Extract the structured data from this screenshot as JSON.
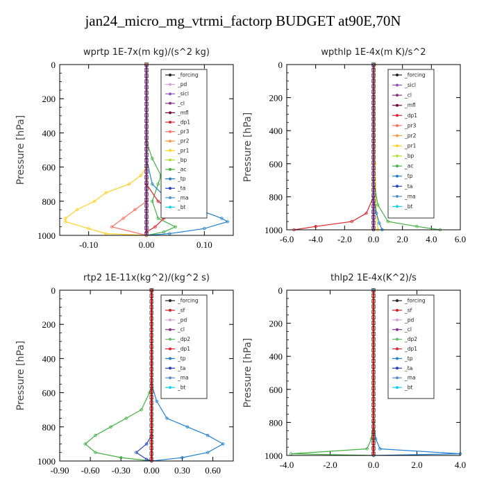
{
  "title": "jan24_micro_mg_vtrmi_factorp  BUDGET at90E,70N",
  "colors": {
    "forcing": "#222222",
    "pd": "#d9a0dc",
    "sicl": "#9a4fc0",
    "cl": "#8a2f8a",
    "mfl": "#7a0040",
    "dp1": "#e0202a",
    "pr3": "#ff7060",
    "pr2": "#ff9a40",
    "pr1": "#ffd020",
    "bp": "#b0e030",
    "ac": "#40b040",
    "tp": "#2080d0",
    "ta": "#2040c0",
    "ma": "#5090d0",
    "bt": "#10d0f0",
    "sf": "#d02020",
    "dp2": "#60c060"
  },
  "chart_data": [
    {
      "type": "line",
      "title": "wprtp   1E-7x(m kg)/(s^2 kg)",
      "ylabel": "Pressure [hPa]",
      "xlim": [
        -0.15,
        0.15
      ],
      "ylim": [
        1000,
        0
      ],
      "xticks": [
        "-0.10",
        "0.00",
        "0.10"
      ],
      "xtick_values": [
        -0.1,
        0.0,
        0.1
      ],
      "yticks": [
        "0",
        "200",
        "400",
        "600",
        "800",
        "1000"
      ],
      "legend": [
        "_forcing",
        "_pd",
        "_sicl",
        "_cl",
        "_mfl",
        "_dp1",
        "_pr3",
        "_pr2",
        "_pr1",
        "_bp",
        "_ac",
        "_tp",
        "_ta",
        "_ma",
        "_bt"
      ],
      "series": [
        {
          "name": "_forcing",
          "color_key": "forcing",
          "points": [
            [
              0,
              0
            ],
            [
              0,
              1000
            ]
          ]
        },
        {
          "name": "_pr1",
          "color_key": "pr1",
          "points": [
            [
              0,
              0
            ],
            [
              0,
              600
            ],
            [
              -0.01,
              650
            ],
            [
              -0.03,
              700
            ],
            [
              -0.07,
              750
            ],
            [
              -0.09,
              800
            ],
            [
              -0.12,
              850
            ],
            [
              -0.14,
              900
            ],
            [
              -0.14,
              920
            ],
            [
              -0.1,
              960
            ],
            [
              -0.07,
              990
            ],
            [
              0,
              1000
            ]
          ]
        },
        {
          "name": "_ac",
          "color_key": "ac",
          "points": [
            [
              0,
              0
            ],
            [
              0,
              450
            ],
            [
              0.01,
              550
            ],
            [
              0.025,
              650
            ],
            [
              0.02,
              700
            ],
            [
              0.01,
              800
            ],
            [
              0.02,
              900
            ],
            [
              0.05,
              950
            ],
            [
              0.03,
              980
            ],
            [
              0,
              1000
            ]
          ]
        },
        {
          "name": "_tp",
          "color_key": "tp",
          "points": [
            [
              0,
              0
            ],
            [
              0,
              550
            ],
            [
              0.01,
              700
            ],
            [
              0.04,
              800
            ],
            [
              0.09,
              850
            ],
            [
              0.13,
              900
            ],
            [
              0.14,
              920
            ],
            [
              0.1,
              960
            ],
            [
              0.04,
              990
            ],
            [
              0,
              1000
            ]
          ]
        },
        {
          "name": "_dp1",
          "color_key": "dp1",
          "points": [
            [
              0,
              0
            ],
            [
              0,
              700
            ],
            [
              0.02,
              800
            ],
            [
              0.04,
              850
            ],
            [
              0.03,
              900
            ],
            [
              0.015,
              950
            ],
            [
              0,
              980
            ],
            [
              0,
              1000
            ]
          ]
        },
        {
          "name": "_pr3",
          "color_key": "pr3",
          "points": [
            [
              0,
              0
            ],
            [
              0,
              800
            ],
            [
              -0.02,
              850
            ],
            [
              -0.04,
              900
            ],
            [
              -0.06,
              950
            ],
            [
              0,
              1000
            ]
          ]
        }
      ]
    },
    {
      "type": "line",
      "title": "wpthlp   1E-4x(m K)/s^2",
      "ylabel": "Pressure [hPa]",
      "xlim": [
        -6.0,
        6.0
      ],
      "ylim": [
        1000,
        0
      ],
      "xticks": [
        "-6.0",
        "-4.0",
        "-2.0",
        "0.0",
        "2.0",
        "4.0",
        "6.0"
      ],
      "xtick_values": [
        -6,
        -4,
        -2,
        0,
        2,
        4,
        6
      ],
      "yticks": [
        "0",
        "200",
        "400",
        "600",
        "800",
        "1000"
      ],
      "legend": [
        "_forcing",
        "_sicl",
        "_cl",
        "_mfl",
        "_dp1",
        "_pr3",
        "_pr2",
        "_pr1",
        "_bp",
        "_ac",
        "_tp",
        "_ta",
        "_ma",
        "_bt"
      ],
      "series": [
        {
          "name": "_forcing",
          "color_key": "forcing",
          "points": [
            [
              0,
              0
            ],
            [
              0,
              1000
            ]
          ]
        },
        {
          "name": "_pr1",
          "color_key": "pr1",
          "points": [
            [
              0.1,
              0
            ],
            [
              0.1,
              600
            ],
            [
              0.2,
              900
            ],
            [
              0.3,
              1000
            ]
          ]
        },
        {
          "name": "_ac",
          "color_key": "ac",
          "points": [
            [
              0,
              0
            ],
            [
              0,
              700
            ],
            [
              0.3,
              850
            ],
            [
              1.0,
              950
            ],
            [
              3.0,
              980
            ],
            [
              4.6,
              1000
            ]
          ]
        },
        {
          "name": "_dp1",
          "color_key": "dp1",
          "points": [
            [
              0,
              0
            ],
            [
              0,
              800
            ],
            [
              -0.5,
              900
            ],
            [
              -1.5,
              950
            ],
            [
              -4.0,
              980
            ],
            [
              -5.5,
              1000
            ]
          ]
        },
        {
          "name": "_tp",
          "color_key": "tp",
          "points": [
            [
              0,
              0
            ],
            [
              0,
              800
            ],
            [
              0.2,
              900
            ],
            [
              0.4,
              960
            ],
            [
              0.6,
              1000
            ]
          ]
        }
      ]
    },
    {
      "type": "line",
      "title": "rtp2   1E-11x(kg^2)/(kg^2 s)",
      "ylabel": "Pressure [hPa]",
      "xlim": [
        -0.9,
        0.8
      ],
      "ylim": [
        1000,
        0
      ],
      "xticks": [
        "-0.90",
        "-0.60",
        "-0.30",
        "0.00",
        "0.30",
        "0.60"
      ],
      "xtick_values": [
        -0.9,
        -0.6,
        -0.3,
        0.0,
        0.3,
        0.6
      ],
      "yticks": [
        "0",
        "200",
        "400",
        "600",
        "800",
        "1000"
      ],
      "legend": [
        "_forcing",
        "_sf",
        "_pd",
        "_cl",
        "_dp2",
        "_dp1",
        "_tp",
        "_ta",
        "_ma",
        "_bt"
      ],
      "series": [
        {
          "name": "_forcing",
          "color_key": "forcing",
          "points": [
            [
              0,
              0
            ],
            [
              0,
              1000
            ]
          ]
        },
        {
          "name": "_dp1",
          "color_key": "ac",
          "points": [
            [
              0,
              0
            ],
            [
              0,
              550
            ],
            [
              -0.02,
              600
            ],
            [
              -0.1,
              700
            ],
            [
              -0.25,
              750
            ],
            [
              -0.4,
              800
            ],
            [
              -0.55,
              850
            ],
            [
              -0.65,
              900
            ],
            [
              -0.55,
              950
            ],
            [
              -0.3,
              980
            ],
            [
              0,
              1000
            ]
          ]
        },
        {
          "name": "_tp",
          "color_key": "tp",
          "points": [
            [
              0,
              0
            ],
            [
              0,
              550
            ],
            [
              0.05,
              650
            ],
            [
              0.15,
              750
            ],
            [
              0.35,
              800
            ],
            [
              0.55,
              850
            ],
            [
              0.7,
              900
            ],
            [
              0.55,
              950
            ],
            [
              0.3,
              980
            ],
            [
              0,
              1000
            ]
          ]
        },
        {
          "name": "_ta",
          "color_key": "ta",
          "points": [
            [
              0,
              0
            ],
            [
              0,
              850
            ],
            [
              -0.05,
              900
            ],
            [
              -0.15,
              950
            ],
            [
              -0.05,
              990
            ],
            [
              0,
              1000
            ]
          ]
        },
        {
          "name": "_sf",
          "color_key": "sf",
          "points": [
            [
              0,
              0
            ],
            [
              0,
              1000
            ]
          ]
        }
      ]
    },
    {
      "type": "line",
      "title": "thlp2   1E-4x(K^2)/s",
      "ylabel": "Pressure [hPa]",
      "xlim": [
        -4.0,
        4.0
      ],
      "ylim": [
        1000,
        0
      ],
      "xticks": [
        "-4.0",
        "-2.0",
        "0.0",
        "2.0",
        "4.0"
      ],
      "xtick_values": [
        -4,
        -2,
        0,
        2,
        4
      ],
      "yticks": [
        "0",
        "200",
        "400",
        "600",
        "800",
        "1000"
      ],
      "legend": [
        "_forcing",
        "_sf",
        "_pd",
        "_cl",
        "_dp2",
        "_dp1",
        "_tp",
        "_ta",
        "_ma",
        "_bt"
      ],
      "series": [
        {
          "name": "_forcing",
          "color_key": "forcing",
          "points": [
            [
              0,
              0
            ],
            [
              0,
              1000
            ]
          ]
        },
        {
          "name": "_sf",
          "color_key": "sf",
          "points": [
            [
              0,
              0
            ],
            [
              0,
              1000
            ]
          ]
        },
        {
          "name": "_dp1",
          "color_key": "ac",
          "points": [
            [
              0,
              0
            ],
            [
              0,
              800
            ],
            [
              -0.1,
              900
            ],
            [
              -0.3,
              960
            ],
            [
              -3.8,
              990
            ],
            [
              0,
              1000
            ]
          ]
        },
        {
          "name": "_tp",
          "color_key": "tp",
          "points": [
            [
              0,
              0
            ],
            [
              0,
              800
            ],
            [
              0.1,
              900
            ],
            [
              0.3,
              960
            ],
            [
              4.0,
              990
            ],
            [
              0,
              1000
            ]
          ]
        }
      ]
    }
  ]
}
